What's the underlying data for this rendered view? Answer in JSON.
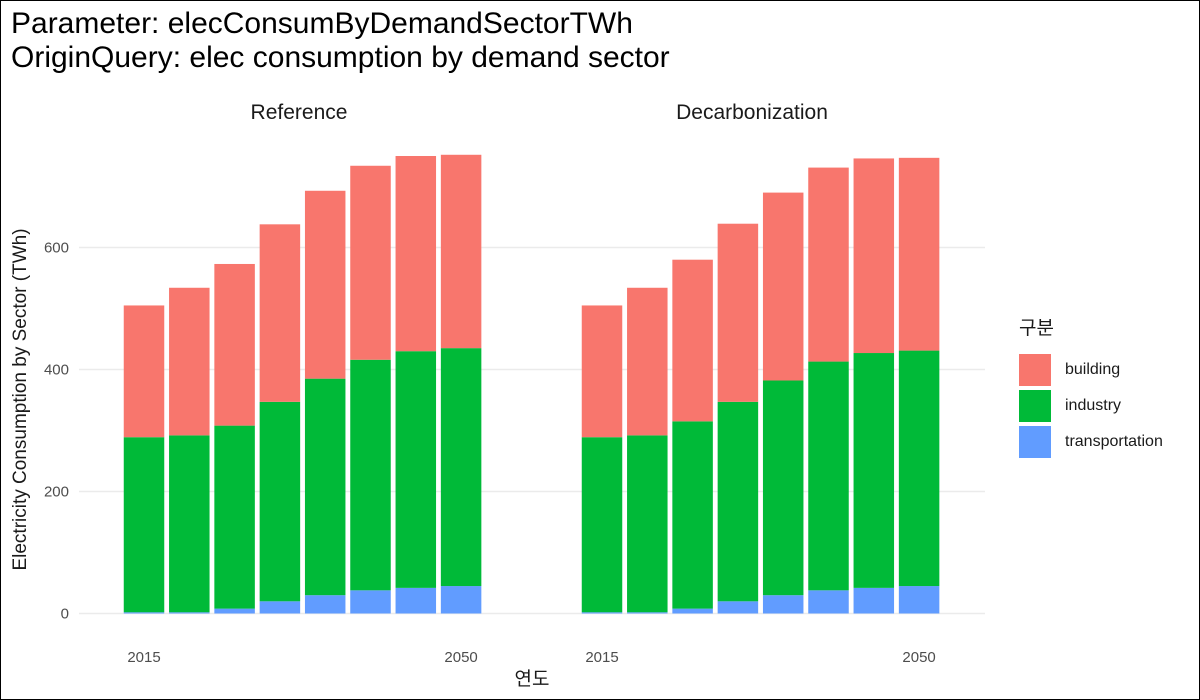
{
  "header": {
    "line1": "Parameter: elecConsumByDemandSectorTWh",
    "line2": "OriginQuery: elec consumption by demand sector"
  },
  "chart_data": {
    "type": "bar",
    "stacked": true,
    "xlabel": "연도",
    "ylabel": "Electricity Consumption by Sector (TWh)",
    "ylim": [
      0,
      760
    ],
    "y_ticks": [
      0,
      200,
      400,
      600
    ],
    "x": [
      2015,
      2020,
      2025,
      2030,
      2035,
      2040,
      2045,
      2050
    ],
    "x_tick_labels": [
      "2015",
      "2050"
    ],
    "grid": "horizontal",
    "legend": {
      "title": "구분",
      "placement": "right"
    },
    "series_colors": {
      "building": "#F8766D",
      "industry": "#00BA38",
      "transportation": "#619CFF"
    },
    "panels": [
      {
        "name": "Reference",
        "series": [
          {
            "name": "transportation",
            "values": [
              2,
              2,
              8,
              20,
              30,
              38,
              42,
              45
            ]
          },
          {
            "name": "industry",
            "values": [
              287,
              290,
              300,
              327,
              355,
              378,
              388,
              390
            ]
          },
          {
            "name": "building",
            "values": [
              216,
              242,
              265,
              291,
              308,
              318,
              320,
              317
            ]
          }
        ]
      },
      {
        "name": "Decarbonization",
        "series": [
          {
            "name": "transportation",
            "values": [
              2,
              2,
              8,
              20,
              30,
              38,
              42,
              45
            ]
          },
          {
            "name": "industry",
            "values": [
              287,
              290,
              307,
              327,
              352,
              375,
              385,
              386
            ]
          },
          {
            "name": "building",
            "values": [
              216,
              242,
              265,
              292,
              308,
              318,
              319,
              316
            ]
          }
        ]
      }
    ]
  }
}
